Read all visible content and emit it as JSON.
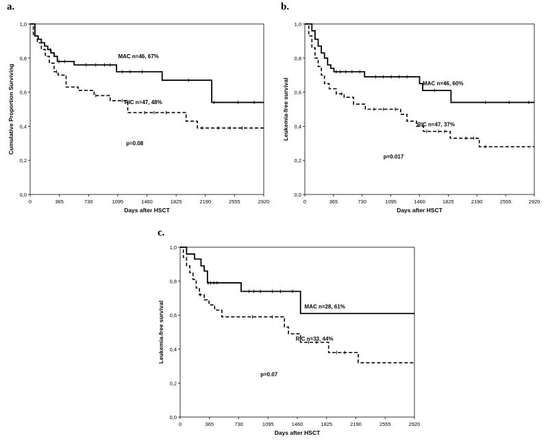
{
  "chart_data": [
    {
      "type": "line",
      "panel_label": "a.",
      "xlabel": "Days after HSCT",
      "ylabel": "Cumulative Proportion Surviving",
      "xlim": [
        0,
        2920
      ],
      "ylim": [
        0,
        1.0
      ],
      "x_ticks": [
        0,
        365,
        730,
        1095,
        1460,
        1825,
        2190,
        2555,
        2920
      ],
      "y_ticks": [
        "0,0",
        "0,2",
        "0,4",
        "0,6",
        "0,8",
        "1,0"
      ],
      "y_tick_values": [
        0,
        0.2,
        0.4,
        0.6,
        0.8,
        1.0
      ],
      "grid": false,
      "legend": "inline-labels",
      "p_value": "p=0.08",
      "series": [
        {
          "name": "MAC n=46, 67%",
          "line_style": "solid",
          "x": [
            0,
            60,
            100,
            140,
            180,
            220,
            260,
            300,
            340,
            400,
            550,
            1080,
            1650,
            2270,
            2920
          ],
          "y": [
            1.0,
            0.93,
            0.91,
            0.89,
            0.87,
            0.85,
            0.83,
            0.81,
            0.78,
            0.78,
            0.76,
            0.72,
            0.67,
            0.54,
            0.54
          ],
          "censor_x": [
            250,
            360,
            430,
            700,
            820,
            930,
            1000,
            1150,
            1250,
            1400,
            1980,
            2300,
            2600,
            2800
          ]
        },
        {
          "name": "RIC n=47, 48%",
          "line_style": "dashed",
          "x": [
            0,
            40,
            90,
            140,
            190,
            240,
            300,
            350,
            450,
            600,
            800,
            1000,
            1220,
            1950,
            2090,
            2920
          ],
          "y": [
            1.0,
            0.93,
            0.89,
            0.85,
            0.81,
            0.77,
            0.72,
            0.7,
            0.63,
            0.61,
            0.58,
            0.55,
            0.48,
            0.43,
            0.39,
            0.39
          ],
          "censor_x": [
            330,
            820,
            1150,
            1430,
            1550,
            1700,
            2150,
            2350,
            2500,
            2650
          ]
        }
      ]
    },
    {
      "type": "line",
      "panel_label": "b.",
      "xlabel": "Days after HSCT",
      "ylabel": "Leukemia-free survival",
      "xlim": [
        0,
        2920
      ],
      "ylim": [
        0,
        1.0
      ],
      "x_ticks": [
        0,
        365,
        730,
        1095,
        1460,
        1825,
        2190,
        2555,
        2920
      ],
      "y_ticks": [
        "0,0",
        "0,2",
        "0,4",
        "0,6",
        "0,8",
        "1,0"
      ],
      "y_tick_values": [
        0,
        0.2,
        0.4,
        0.6,
        0.8,
        1.0
      ],
      "grid": false,
      "legend": "inline-labels",
      "p_value": "p=0.017",
      "series": [
        {
          "name": "MAC n=46, 60%",
          "line_style": "solid",
          "x": [
            0,
            90,
            130,
            170,
            210,
            250,
            290,
            330,
            370,
            760,
            1460,
            1500,
            1860,
            2920
          ],
          "y": [
            1.0,
            0.96,
            0.91,
            0.87,
            0.83,
            0.8,
            0.76,
            0.74,
            0.72,
            0.69,
            0.65,
            0.61,
            0.54,
            0.54
          ],
          "censor_x": [
            400,
            450,
            520,
            600,
            700,
            900,
            1000,
            1100,
            1200,
            1300,
            1650,
            2300,
            2600,
            2850
          ]
        },
        {
          "name": "RIC n=47, 37%",
          "line_style": "dashed",
          "x": [
            0,
            50,
            90,
            130,
            170,
            210,
            250,
            310,
            400,
            500,
            620,
            770,
            1220,
            1300,
            1420,
            1510,
            1850,
            2220,
            2920
          ],
          "y": [
            1.0,
            0.93,
            0.86,
            0.8,
            0.75,
            0.7,
            0.65,
            0.62,
            0.59,
            0.57,
            0.53,
            0.5,
            0.47,
            0.43,
            0.4,
            0.37,
            0.33,
            0.28,
            0.28
          ],
          "censor_x": [
            470,
            880,
            1000,
            1150,
            1550,
            1700,
            1780,
            2050,
            2150,
            2300
          ]
        }
      ]
    },
    {
      "type": "line",
      "panel_label": "c.",
      "xlabel": "Days after HSCT",
      "ylabel": "Leukemia-free survival",
      "xlim": [
        0,
        2920
      ],
      "ylim": [
        0,
        1.0
      ],
      "x_ticks": [
        0,
        365,
        730,
        1095,
        1460,
        1825,
        2190,
        2555,
        2920
      ],
      "y_ticks": [
        "0,0",
        "0,2",
        "0,4",
        "0,6",
        "0,8",
        "1,0"
      ],
      "y_tick_values": [
        0,
        0.2,
        0.4,
        0.6,
        0.8,
        1.0
      ],
      "grid": false,
      "legend": "inline-labels",
      "p_value": "p=0.07",
      "series": [
        {
          "name": "MAC n=28, 61%",
          "line_style": "solid",
          "x": [
            0,
            80,
            180,
            260,
            300,
            340,
            760,
            1500,
            2920
          ],
          "y": [
            1.0,
            0.96,
            0.93,
            0.89,
            0.86,
            0.79,
            0.74,
            0.61,
            0.61
          ],
          "censor_x": [
            350,
            380,
            420,
            460,
            860,
            920,
            1000,
            1150,
            1250,
            1400
          ]
        },
        {
          "name": "RIC n=33, 44%",
          "line_style": "dashed",
          "x": [
            0,
            40,
            80,
            120,
            160,
            200,
            240,
            300,
            360,
            430,
            520,
            1300,
            1350,
            1500,
            1850,
            2220,
            2920
          ],
          "y": [
            1.0,
            0.94,
            0.89,
            0.85,
            0.81,
            0.76,
            0.72,
            0.69,
            0.66,
            0.63,
            0.59,
            0.53,
            0.49,
            0.44,
            0.38,
            0.32,
            0.32
          ],
          "censor_x": [
            250,
            900,
            1150,
            1600,
            1700,
            1950,
            2050
          ]
        }
      ]
    }
  ]
}
